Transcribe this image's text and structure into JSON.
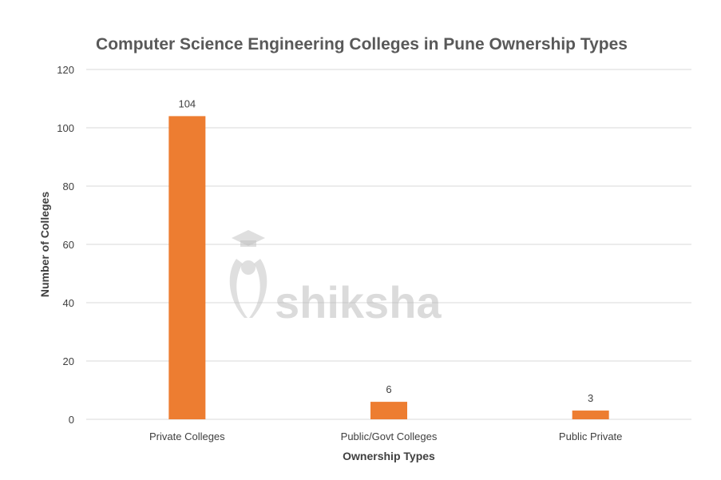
{
  "chart_data": {
    "type": "bar",
    "title": "Computer Science Engineering Colleges in Pune Ownership Types",
    "xlabel": "Ownership Types",
    "ylabel": "Number of Colleges",
    "categories": [
      "Private Colleges",
      "Public/Govt Colleges",
      "Public Private"
    ],
    "values": [
      104,
      6,
      3
    ],
    "data_labels": [
      "104",
      "6",
      "3"
    ],
    "ylim": [
      0,
      120
    ],
    "yticks": [
      0,
      20,
      40,
      60,
      80,
      100,
      120
    ],
    "grid": "horizontal",
    "bar_color": "#ed7d31"
  },
  "watermark": {
    "text": "shiksha",
    "icon": "graduate-cap-logo-icon"
  }
}
